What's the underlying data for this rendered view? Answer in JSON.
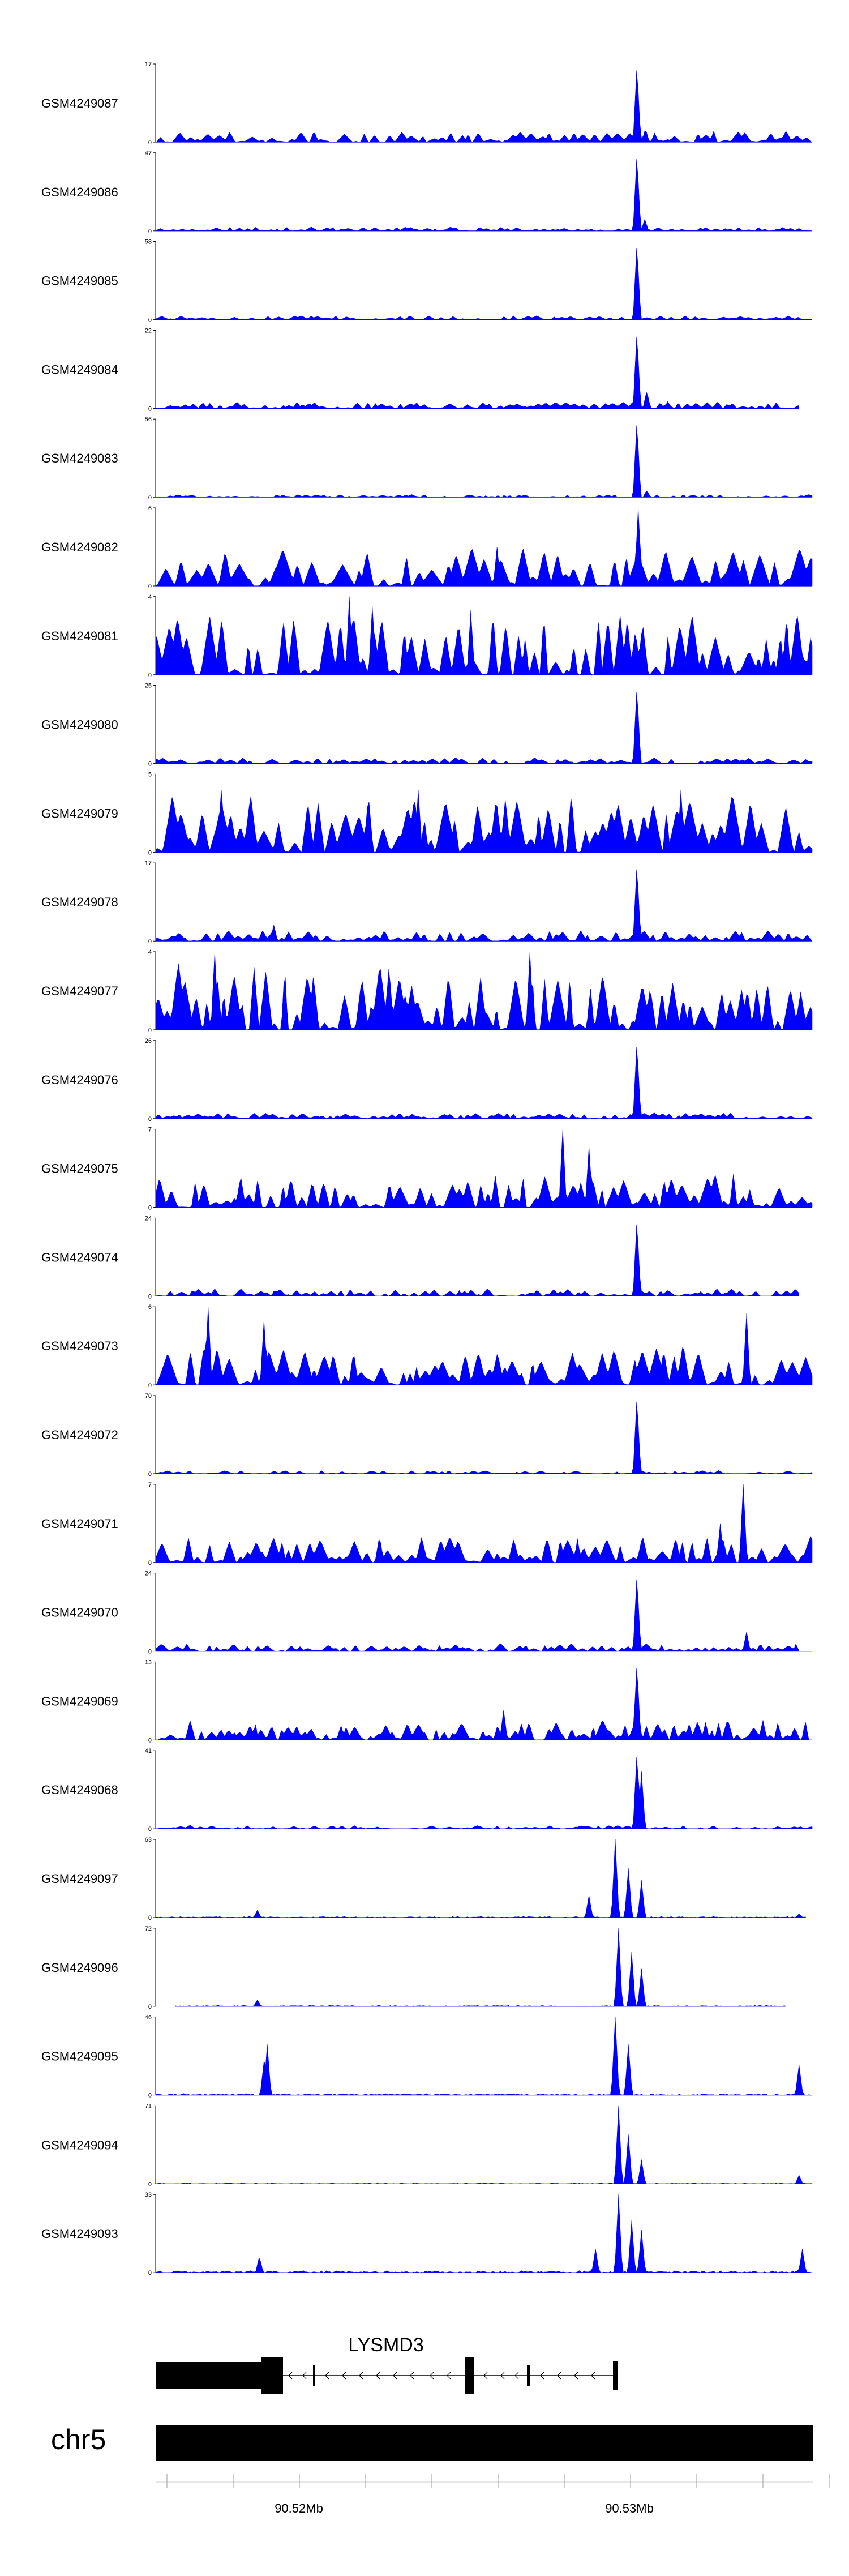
{
  "chart_data": {
    "type": "area",
    "genome_region": {
      "chromosome": "chr5",
      "x_ticks": [
        90.52,
        90.53
      ],
      "x_tick_labels": [
        "90.52Mb",
        "90.53Mb"
      ]
    },
    "series": [
      {
        "name": "GSM4249087",
        "ymax": 17,
        "peaks": [
          [
            0.733,
            17
          ],
          [
            0.746,
            3
          ],
          [
            0.76,
            2
          ]
        ],
        "noise": 2.5,
        "spacing": 0.012,
        "range": [
          0,
          1
        ]
      },
      {
        "name": "GSM4249086",
        "ymax": 47,
        "peaks": [
          [
            0.733,
            47
          ],
          [
            0.745,
            7
          ]
        ],
        "noise": 2.5,
        "spacing": 0.01,
        "range": [
          0,
          1
        ]
      },
      {
        "name": "GSM4249085",
        "ymax": 58,
        "peaks": [
          [
            0.733,
            58
          ]
        ],
        "noise": 3,
        "spacing": 0.012,
        "range": [
          0,
          1
        ]
      },
      {
        "name": "GSM4249084",
        "ymax": 22,
        "peaks": [
          [
            0.733,
            22
          ],
          [
            0.748,
            5
          ],
          [
            0.78,
            2
          ]
        ],
        "noise": 2,
        "spacing": 0.011,
        "range": [
          0,
          0.98
        ]
      },
      {
        "name": "GSM4249083",
        "ymax": 56,
        "peaks": [
          [
            0.733,
            56
          ],
          [
            0.748,
            5
          ]
        ],
        "noise": 2,
        "spacing": 0.01,
        "range": [
          0,
          1
        ]
      },
      {
        "name": "GSM4249082",
        "ymax": 6,
        "peaks": [
          [
            0.735,
            6
          ],
          [
            0.52,
            3
          ]
        ],
        "noise": 3,
        "spacing": 0.016,
        "range": [
          0,
          1
        ]
      },
      {
        "name": "GSM4249081",
        "ymax": 4,
        "peaks": [
          [
            0.295,
            4
          ],
          [
            0.33,
            3.5
          ],
          [
            0.48,
            3.3
          ]
        ],
        "noise": 3.2,
        "spacing": 0.013,
        "range": [
          0,
          1
        ]
      },
      {
        "name": "GSM4249080",
        "ymax": 25,
        "peaks": [
          [
            0.733,
            25
          ]
        ],
        "noise": 2,
        "spacing": 0.012,
        "range": [
          0,
          1
        ]
      },
      {
        "name": "GSM4249079",
        "ymax": 5,
        "peaks": [
          [
            0.1,
            4
          ],
          [
            0.4,
            4
          ],
          [
            0.8,
            4
          ]
        ],
        "noise": 3.8,
        "spacing": 0.014,
        "range": [
          0,
          1
        ]
      },
      {
        "name": "GSM4249078",
        "ymax": 17,
        "peaks": [
          [
            0.733,
            17
          ],
          [
            0.18,
            3.5
          ]
        ],
        "noise": 2.5,
        "spacing": 0.011,
        "range": [
          0,
          1
        ]
      },
      {
        "name": "GSM4249077",
        "ymax": 4,
        "peaks": [
          [
            0.09,
            4
          ],
          [
            0.57,
            4
          ]
        ],
        "noise": 3.5,
        "spacing": 0.012,
        "range": [
          0,
          1
        ]
      },
      {
        "name": "GSM4249076",
        "ymax": 26,
        "peaks": [
          [
            0.733,
            26
          ]
        ],
        "noise": 2,
        "spacing": 0.011,
        "range": [
          0,
          1
        ]
      },
      {
        "name": "GSM4249075",
        "ymax": 7,
        "peaks": [
          [
            0.62,
            7
          ],
          [
            0.66,
            5.5
          ],
          [
            0.88,
            3
          ]
        ],
        "noise": 3,
        "spacing": 0.013,
        "range": [
          0,
          1
        ]
      },
      {
        "name": "GSM4249074",
        "ymax": 24,
        "peaks": [
          [
            0.733,
            24
          ]
        ],
        "noise": 2.5,
        "spacing": 0.011,
        "range": [
          0,
          0.98
        ]
      },
      {
        "name": "GSM4249073",
        "ymax": 6,
        "peaks": [
          [
            0.08,
            6
          ],
          [
            0.165,
            5
          ],
          [
            0.9,
            5.5
          ]
        ],
        "noise": 3.2,
        "spacing": 0.014,
        "range": [
          0,
          1
        ]
      },
      {
        "name": "GSM4249072",
        "ymax": 70,
        "peaks": [
          [
            0.733,
            70
          ]
        ],
        "noise": 3,
        "spacing": 0.012,
        "range": [
          0,
          1
        ]
      },
      {
        "name": "GSM4249071",
        "ymax": 7,
        "peaks": [
          [
            0.895,
            7
          ],
          [
            0.86,
            3.5
          ]
        ],
        "noise": 2.5,
        "spacing": 0.013,
        "range": [
          0,
          1
        ]
      },
      {
        "name": "GSM4249070",
        "ymax": 24,
        "peaks": [
          [
            0.733,
            24
          ],
          [
            0.9,
            6
          ]
        ],
        "noise": 2.5,
        "spacing": 0.011,
        "range": [
          0,
          1
        ]
      },
      {
        "name": "GSM4249069",
        "ymax": 13,
        "peaks": [
          [
            0.733,
            13
          ],
          [
            0.53,
            5
          ]
        ],
        "noise": 3.5,
        "spacing": 0.011,
        "range": [
          0,
          1
        ]
      },
      {
        "name": "GSM4249068",
        "ymax": 41,
        "peaks": [
          [
            0.733,
            41
          ],
          [
            0.74,
            30
          ]
        ],
        "noise": 2,
        "spacing": 0.012,
        "range": [
          0,
          1
        ]
      },
      {
        "name": "GSM4249097",
        "ymax": 63,
        "peaks": [
          [
            0.7,
            63
          ],
          [
            0.72,
            40
          ],
          [
            0.74,
            30
          ],
          [
            0.66,
            18
          ],
          [
            0.155,
            6
          ],
          [
            0.98,
            3
          ]
        ],
        "noise": 1,
        "spacing": 0.005,
        "range": [
          0,
          0.99
        ]
      },
      {
        "name": "GSM4249096",
        "ymax": 72,
        "peaks": [
          [
            0.705,
            72
          ],
          [
            0.725,
            50
          ],
          [
            0.74,
            35
          ],
          [
            0.155,
            6
          ]
        ],
        "noise": 1,
        "spacing": 0.005,
        "range": [
          0.03,
          0.96
        ]
      },
      {
        "name": "GSM4249095",
        "ymax": 46,
        "peaks": [
          [
            0.7,
            46
          ],
          [
            0.72,
            30
          ],
          [
            0.17,
            30
          ],
          [
            0.165,
            20
          ],
          [
            0.98,
            18
          ]
        ],
        "noise": 1,
        "spacing": 0.005,
        "range": [
          0,
          1
        ]
      },
      {
        "name": "GSM4249094",
        "ymax": 71,
        "peaks": [
          [
            0.705,
            71
          ],
          [
            0.72,
            45
          ],
          [
            0.74,
            22
          ],
          [
            0.98,
            8
          ]
        ],
        "noise": 1,
        "spacing": 0.005,
        "range": [
          0,
          1
        ]
      },
      {
        "name": "GSM4249093",
        "ymax": 33,
        "peaks": [
          [
            0.705,
            33
          ],
          [
            0.725,
            22
          ],
          [
            0.74,
            18
          ],
          [
            0.67,
            10
          ],
          [
            0.158,
            7
          ],
          [
            0.985,
            10
          ]
        ],
        "noise": 1,
        "spacing": 0.005,
        "range": [
          0,
          1
        ]
      }
    ],
    "gene": {
      "name": "LYSMD3",
      "strand": "-"
    }
  },
  "colors": {
    "signal": "#0000ff",
    "axis": "#000000",
    "gene": "#000000"
  }
}
